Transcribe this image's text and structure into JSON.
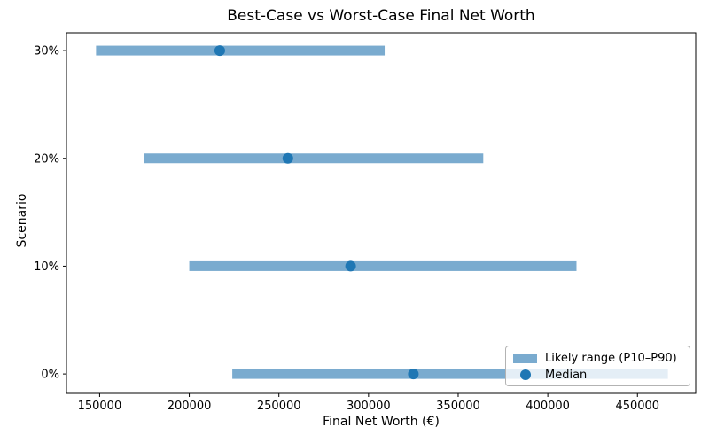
{
  "chart_data": {
    "type": "bar",
    "subtype": "horizontal_range_bars_with_median_points",
    "title": "Best-Case vs Worst-Case Final Net Worth",
    "xlabel": "Final Net Worth (€)",
    "ylabel": "Scenario",
    "categories": [
      "0%",
      "10%",
      "20%",
      "30%"
    ],
    "rows": [
      {
        "scenario": "0%",
        "p10": 224000,
        "median": 325000,
        "p90": 467000
      },
      {
        "scenario": "10%",
        "p10": 200000,
        "median": 290000,
        "p90": 416000
      },
      {
        "scenario": "20%",
        "p10": 175000,
        "median": 255000,
        "p90": 364000
      },
      {
        "scenario": "30%",
        "p10": 148000,
        "median": 217000,
        "p90": 309000
      }
    ],
    "xlim": [
      131500,
      482500
    ],
    "xticks": [
      150000,
      200000,
      250000,
      300000,
      350000,
      400000,
      450000
    ],
    "xtick_labels": [
      "150000",
      "200000",
      "250000",
      "300000",
      "350000",
      "400000",
      "450000"
    ],
    "grid": false,
    "legend": {
      "position": "lower right",
      "entries": [
        {
          "label": "Likely range (P10–P90)",
          "marker": "bar"
        },
        {
          "label": "Median",
          "marker": "dot"
        }
      ]
    },
    "colors": {
      "range_bar": "#7aabcf",
      "median_dot": "#1f77b4",
      "spine": "#000000",
      "background": "#ffffff"
    }
  }
}
